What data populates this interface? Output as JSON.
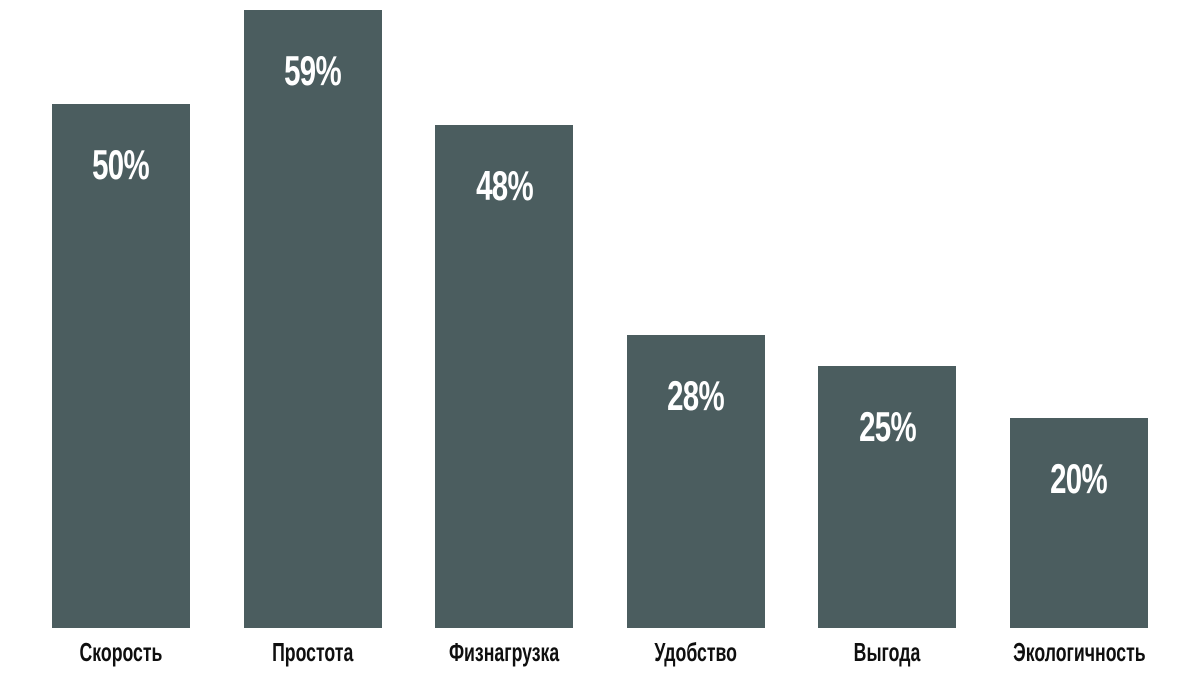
{
  "chart_data": {
    "type": "bar",
    "categories": [
      "Скорость",
      "Простота",
      "Физнагрузка",
      "Удобство",
      "Выгода",
      "Экологичность"
    ],
    "values": [
      50,
      59,
      48,
      28,
      25,
      20
    ],
    "value_labels": [
      "50%",
      "59%",
      "48%",
      "28%",
      "25%",
      "20%"
    ],
    "title": "",
    "xlabel": "",
    "ylabel": "",
    "ylim": [
      0,
      60
    ],
    "grid": false,
    "legend": false,
    "value_label_position": "inside-top",
    "colors": {
      "bar": "#4b5d5f",
      "value_label": "#ffffff",
      "category_label": "#0f0f0f",
      "background": "#ffffff"
    }
  }
}
